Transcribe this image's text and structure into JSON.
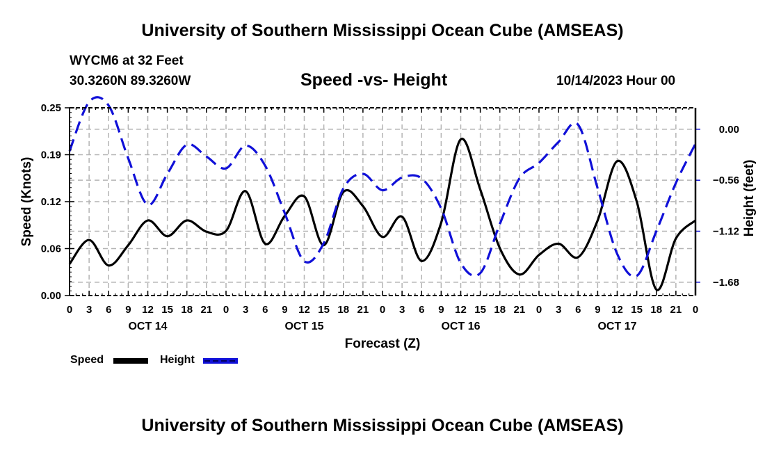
{
  "header": {
    "main_title": "University of Southern Mississippi Ocean Cube (AMSEAS)",
    "station": "WYCM6 at 32 Feet",
    "coordinates": "30.3260N  89.3260W",
    "chart_title": "Speed -vs- Height",
    "datetime": "10/14/2023 Hour 00"
  },
  "footer": {
    "title": "University of Southern Mississippi Ocean Cube (AMSEAS)"
  },
  "legend": {
    "speed_label": "Speed",
    "height_label": "Height"
  },
  "colors": {
    "speed": "#000000",
    "height": "#1010d8",
    "grid": "#b4b4b4"
  },
  "chart_data": {
    "type": "line",
    "title": "Speed -vs- Height",
    "xlabel": "Forecast (Z)",
    "ylabel": "Speed (Knots)",
    "y2label": "Height (feet)",
    "xlim": [
      0,
      96
    ],
    "ylim": [
      0,
      0.25
    ],
    "y2lim": [
      -1.8264,
      0.2355
    ],
    "grid": true,
    "legend_position": "bottom-left",
    "x_tick_labels": [
      "0",
      "3",
      "6",
      "9",
      "12",
      "15",
      "18",
      "21",
      "0",
      "3",
      "6",
      "9",
      "12",
      "15",
      "18",
      "21",
      "0",
      "3",
      "6",
      "9",
      "12",
      "15",
      "18",
      "21",
      "0",
      "3",
      "6",
      "9",
      "12",
      "15",
      "18",
      "21",
      "0"
    ],
    "day_labels": [
      {
        "label": "OCT 14",
        "hour": 12
      },
      {
        "label": "OCT 15",
        "hour": 36
      },
      {
        "label": "OCT 16",
        "hour": 60
      },
      {
        "label": "OCT 17",
        "hour": 84
      }
    ],
    "y_ticks": [
      {
        "value": 0.0,
        "label": "0.00"
      },
      {
        "value": 0.0625,
        "label": "0.06"
      },
      {
        "value": 0.125,
        "label": "0.12"
      },
      {
        "value": 0.1875,
        "label": "0.19"
      },
      {
        "value": 0.25,
        "label": "0.25"
      }
    ],
    "y2_ticks": [
      {
        "value": 0.0,
        "label": "0.00"
      },
      {
        "value": -0.56,
        "label": "−0.56"
      },
      {
        "value": -1.12,
        "label": "−1.12"
      },
      {
        "value": -1.68,
        "label": "−1.68"
      }
    ],
    "x": [
      0,
      3,
      6,
      9,
      12,
      15,
      18,
      21,
      24,
      27,
      30,
      33,
      36,
      39,
      42,
      45,
      48,
      51,
      54,
      57,
      60,
      63,
      66,
      69,
      72,
      75,
      78,
      81,
      84,
      87,
      90,
      93,
      96
    ],
    "series": [
      {
        "name": "Speed",
        "axis": "left",
        "style": "solid",
        "values": [
          0.042,
          0.074,
          0.04,
          0.067,
          0.1,
          0.079,
          0.1,
          0.085,
          0.086,
          0.139,
          0.069,
          0.106,
          0.132,
          0.067,
          0.138,
          0.119,
          0.078,
          0.105,
          0.046,
          0.097,
          0.208,
          0.141,
          0.063,
          0.028,
          0.054,
          0.069,
          0.051,
          0.1,
          0.179,
          0.125,
          0.008,
          0.076,
          0.1
        ]
      },
      {
        "name": "Height",
        "axis": "right",
        "style": "dashed",
        "values": [
          -0.24,
          0.3,
          0.26,
          -0.32,
          -0.83,
          -0.49,
          -0.17,
          -0.3,
          -0.43,
          -0.18,
          -0.4,
          -0.92,
          -1.45,
          -1.25,
          -0.65,
          -0.49,
          -0.67,
          -0.53,
          -0.54,
          -0.87,
          -1.47,
          -1.58,
          -1.04,
          -0.54,
          -0.37,
          -0.14,
          0.05,
          -0.65,
          -1.37,
          -1.61,
          -1.12,
          -0.59,
          -0.16
        ]
      }
    ]
  }
}
